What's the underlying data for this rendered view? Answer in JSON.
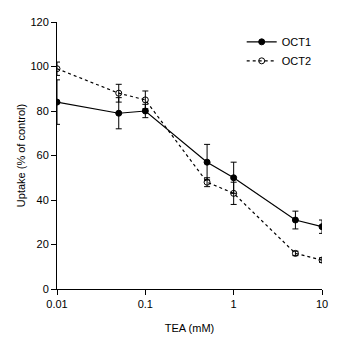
{
  "chart_data": {
    "type": "scatter",
    "x_label": "TEA (mM)",
    "y_label": "Uptake (% of control)",
    "log": "x",
    "grid": false,
    "legend": "top-right",
    "xlim": [
      0.01,
      10
    ],
    "xticks": [
      0.01,
      0.1,
      1,
      10
    ],
    "ylim": [
      0,
      120
    ],
    "yticks": [
      0,
      20,
      40,
      60,
      80,
      100,
      120
    ],
    "x": [
      0.01,
      0.05,
      0.1,
      0.5,
      1,
      5,
      10
    ],
    "series": [
      {
        "name": "OCT1",
        "color": "#000000",
        "marker": "filled",
        "line_style": "solid",
        "values": [
          84,
          79,
          80,
          57,
          50,
          31,
          28
        ],
        "errors": [
          10,
          7,
          3,
          8,
          7,
          4,
          3
        ]
      },
      {
        "name": "OCT2",
        "color": "#000000",
        "marker": "open",
        "line_style": "dotted",
        "values": [
          99,
          88,
          85,
          48,
          43,
          16,
          13
        ],
        "errors": [
          3,
          4,
          4,
          2,
          5,
          1,
          1
        ]
      }
    ]
  }
}
